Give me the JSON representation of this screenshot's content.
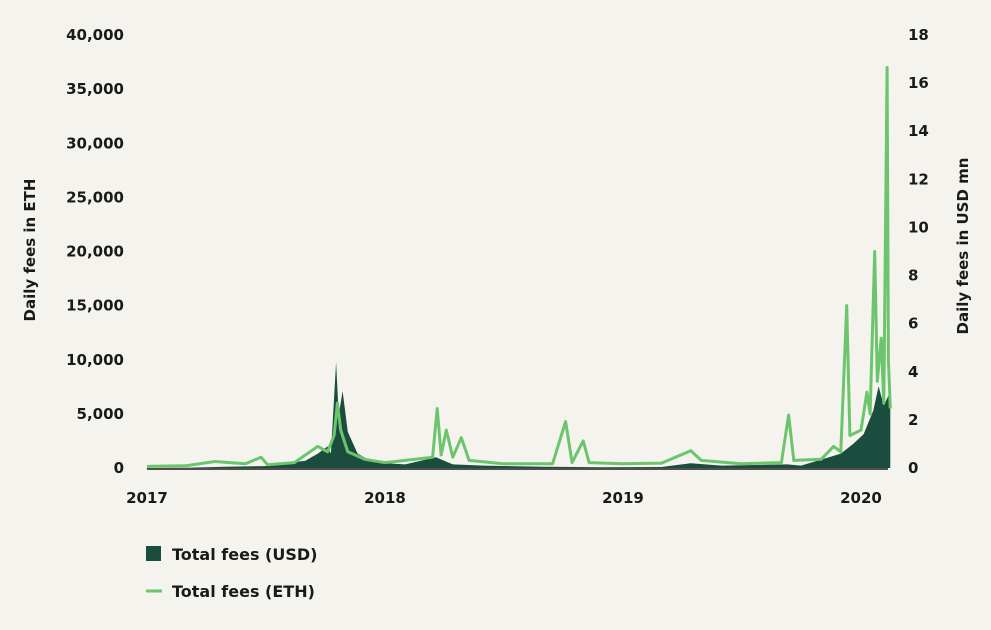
{
  "chart_data": {
    "type": "area",
    "x_axis": {
      "ticks": [
        "2017",
        "2018",
        "2019",
        "2020"
      ]
    },
    "y_left": {
      "label": "Daily fees in ETH",
      "range": [
        0,
        40000
      ],
      "ticks": [
        "0",
        "5,000",
        "10,000",
        "15,000",
        "20,000",
        "25,000",
        "30,000",
        "35,000",
        "40,000"
      ]
    },
    "y_right": {
      "label": "Daily fees in USD mn",
      "range": [
        0,
        18
      ],
      "ticks": [
        "0",
        "2",
        "4",
        "6",
        "8",
        "10",
        "12",
        "14",
        "16",
        "18"
      ]
    },
    "legend_position": "bottom-left",
    "series": [
      {
        "name": "Total fees (USD)",
        "kind": "area",
        "axis": "right",
        "color": "#1b4d3e",
        "points": [
          [
            "2017-01-01",
            0.0
          ],
          [
            "2017-03-01",
            0.01
          ],
          [
            "2017-05-01",
            0.05
          ],
          [
            "2017-07-01",
            0.08
          ],
          [
            "2017-09-01",
            0.3
          ],
          [
            "2017-09-20",
            0.6
          ],
          [
            "2017-10-05",
            0.9
          ],
          [
            "2017-10-10",
            0.6
          ],
          [
            "2017-10-18",
            4.4
          ],
          [
            "2017-10-22",
            2.2
          ],
          [
            "2017-10-28",
            3.2
          ],
          [
            "2017-11-05",
            1.5
          ],
          [
            "2017-11-20",
            0.6
          ],
          [
            "2017-12-10",
            0.3
          ],
          [
            "2018-01-01",
            0.2
          ],
          [
            "2018-02-01",
            0.15
          ],
          [
            "2018-03-20",
            0.45
          ],
          [
            "2018-04-15",
            0.15
          ],
          [
            "2018-06-01",
            0.1
          ],
          [
            "2018-09-01",
            0.05
          ],
          [
            "2018-12-01",
            0.03
          ],
          [
            "2019-03-01",
            0.04
          ],
          [
            "2019-04-15",
            0.2
          ],
          [
            "2019-06-01",
            0.1
          ],
          [
            "2019-09-10",
            0.15
          ],
          [
            "2019-10-01",
            0.1
          ],
          [
            "2019-11-01",
            0.35
          ],
          [
            "2019-12-01",
            0.6
          ],
          [
            "2019-12-20",
            1.0
          ],
          [
            "2020-01-05",
            1.4
          ],
          [
            "2020-01-20",
            2.4
          ],
          [
            "2020-01-28",
            3.4
          ],
          [
            "2020-02-05",
            2.6
          ],
          [
            "2020-02-12",
            3.0
          ],
          [
            "2020-02-15",
            2.8
          ]
        ]
      },
      {
        "name": "Total fees (ETH)",
        "kind": "line",
        "axis": "left",
        "color": "#6cc56c",
        "points": [
          [
            "2017-01-01",
            150
          ],
          [
            "2017-03-01",
            200
          ],
          [
            "2017-04-15",
            600
          ],
          [
            "2017-06-01",
            400
          ],
          [
            "2017-06-25",
            1000
          ],
          [
            "2017-07-05",
            300
          ],
          [
            "2017-08-15",
            500
          ],
          [
            "2017-09-20",
            2000
          ],
          [
            "2017-10-05",
            1500
          ],
          [
            "2017-10-15",
            3000
          ],
          [
            "2017-10-20",
            6000
          ],
          [
            "2017-10-25",
            3500
          ],
          [
            "2017-11-05",
            1500
          ],
          [
            "2017-12-01",
            800
          ],
          [
            "2018-01-01",
            500
          ],
          [
            "2018-02-01",
            700
          ],
          [
            "2018-03-15",
            1000
          ],
          [
            "2018-03-22",
            5500
          ],
          [
            "2018-03-28",
            1200
          ],
          [
            "2018-04-05",
            3500
          ],
          [
            "2018-04-15",
            1000
          ],
          [
            "2018-04-28",
            2800
          ],
          [
            "2018-05-10",
            700
          ],
          [
            "2018-07-01",
            400
          ],
          [
            "2018-09-15",
            400
          ],
          [
            "2018-10-05",
            4300
          ],
          [
            "2018-10-15",
            500
          ],
          [
            "2018-11-01",
            2500
          ],
          [
            "2018-11-10",
            500
          ],
          [
            "2019-01-01",
            400
          ],
          [
            "2019-03-01",
            450
          ],
          [
            "2019-04-15",
            1600
          ],
          [
            "2019-05-01",
            700
          ],
          [
            "2019-07-01",
            400
          ],
          [
            "2019-09-01",
            500
          ],
          [
            "2019-09-12",
            4900
          ],
          [
            "2019-09-20",
            700
          ],
          [
            "2019-11-01",
            800
          ],
          [
            "2019-11-20",
            2000
          ],
          [
            "2019-12-01",
            1500
          ],
          [
            "2019-12-10",
            15000
          ],
          [
            "2019-12-15",
            3000
          ],
          [
            "2020-01-01",
            3500
          ],
          [
            "2020-01-10",
            7000
          ],
          [
            "2020-01-15",
            5000
          ],
          [
            "2020-01-22",
            20000
          ],
          [
            "2020-01-26",
            8000
          ],
          [
            "2020-02-01",
            12000
          ],
          [
            "2020-02-05",
            6000
          ],
          [
            "2020-02-10",
            37000
          ],
          [
            "2020-02-12",
            10000
          ],
          [
            "2020-02-15",
            5500
          ]
        ]
      }
    ]
  }
}
